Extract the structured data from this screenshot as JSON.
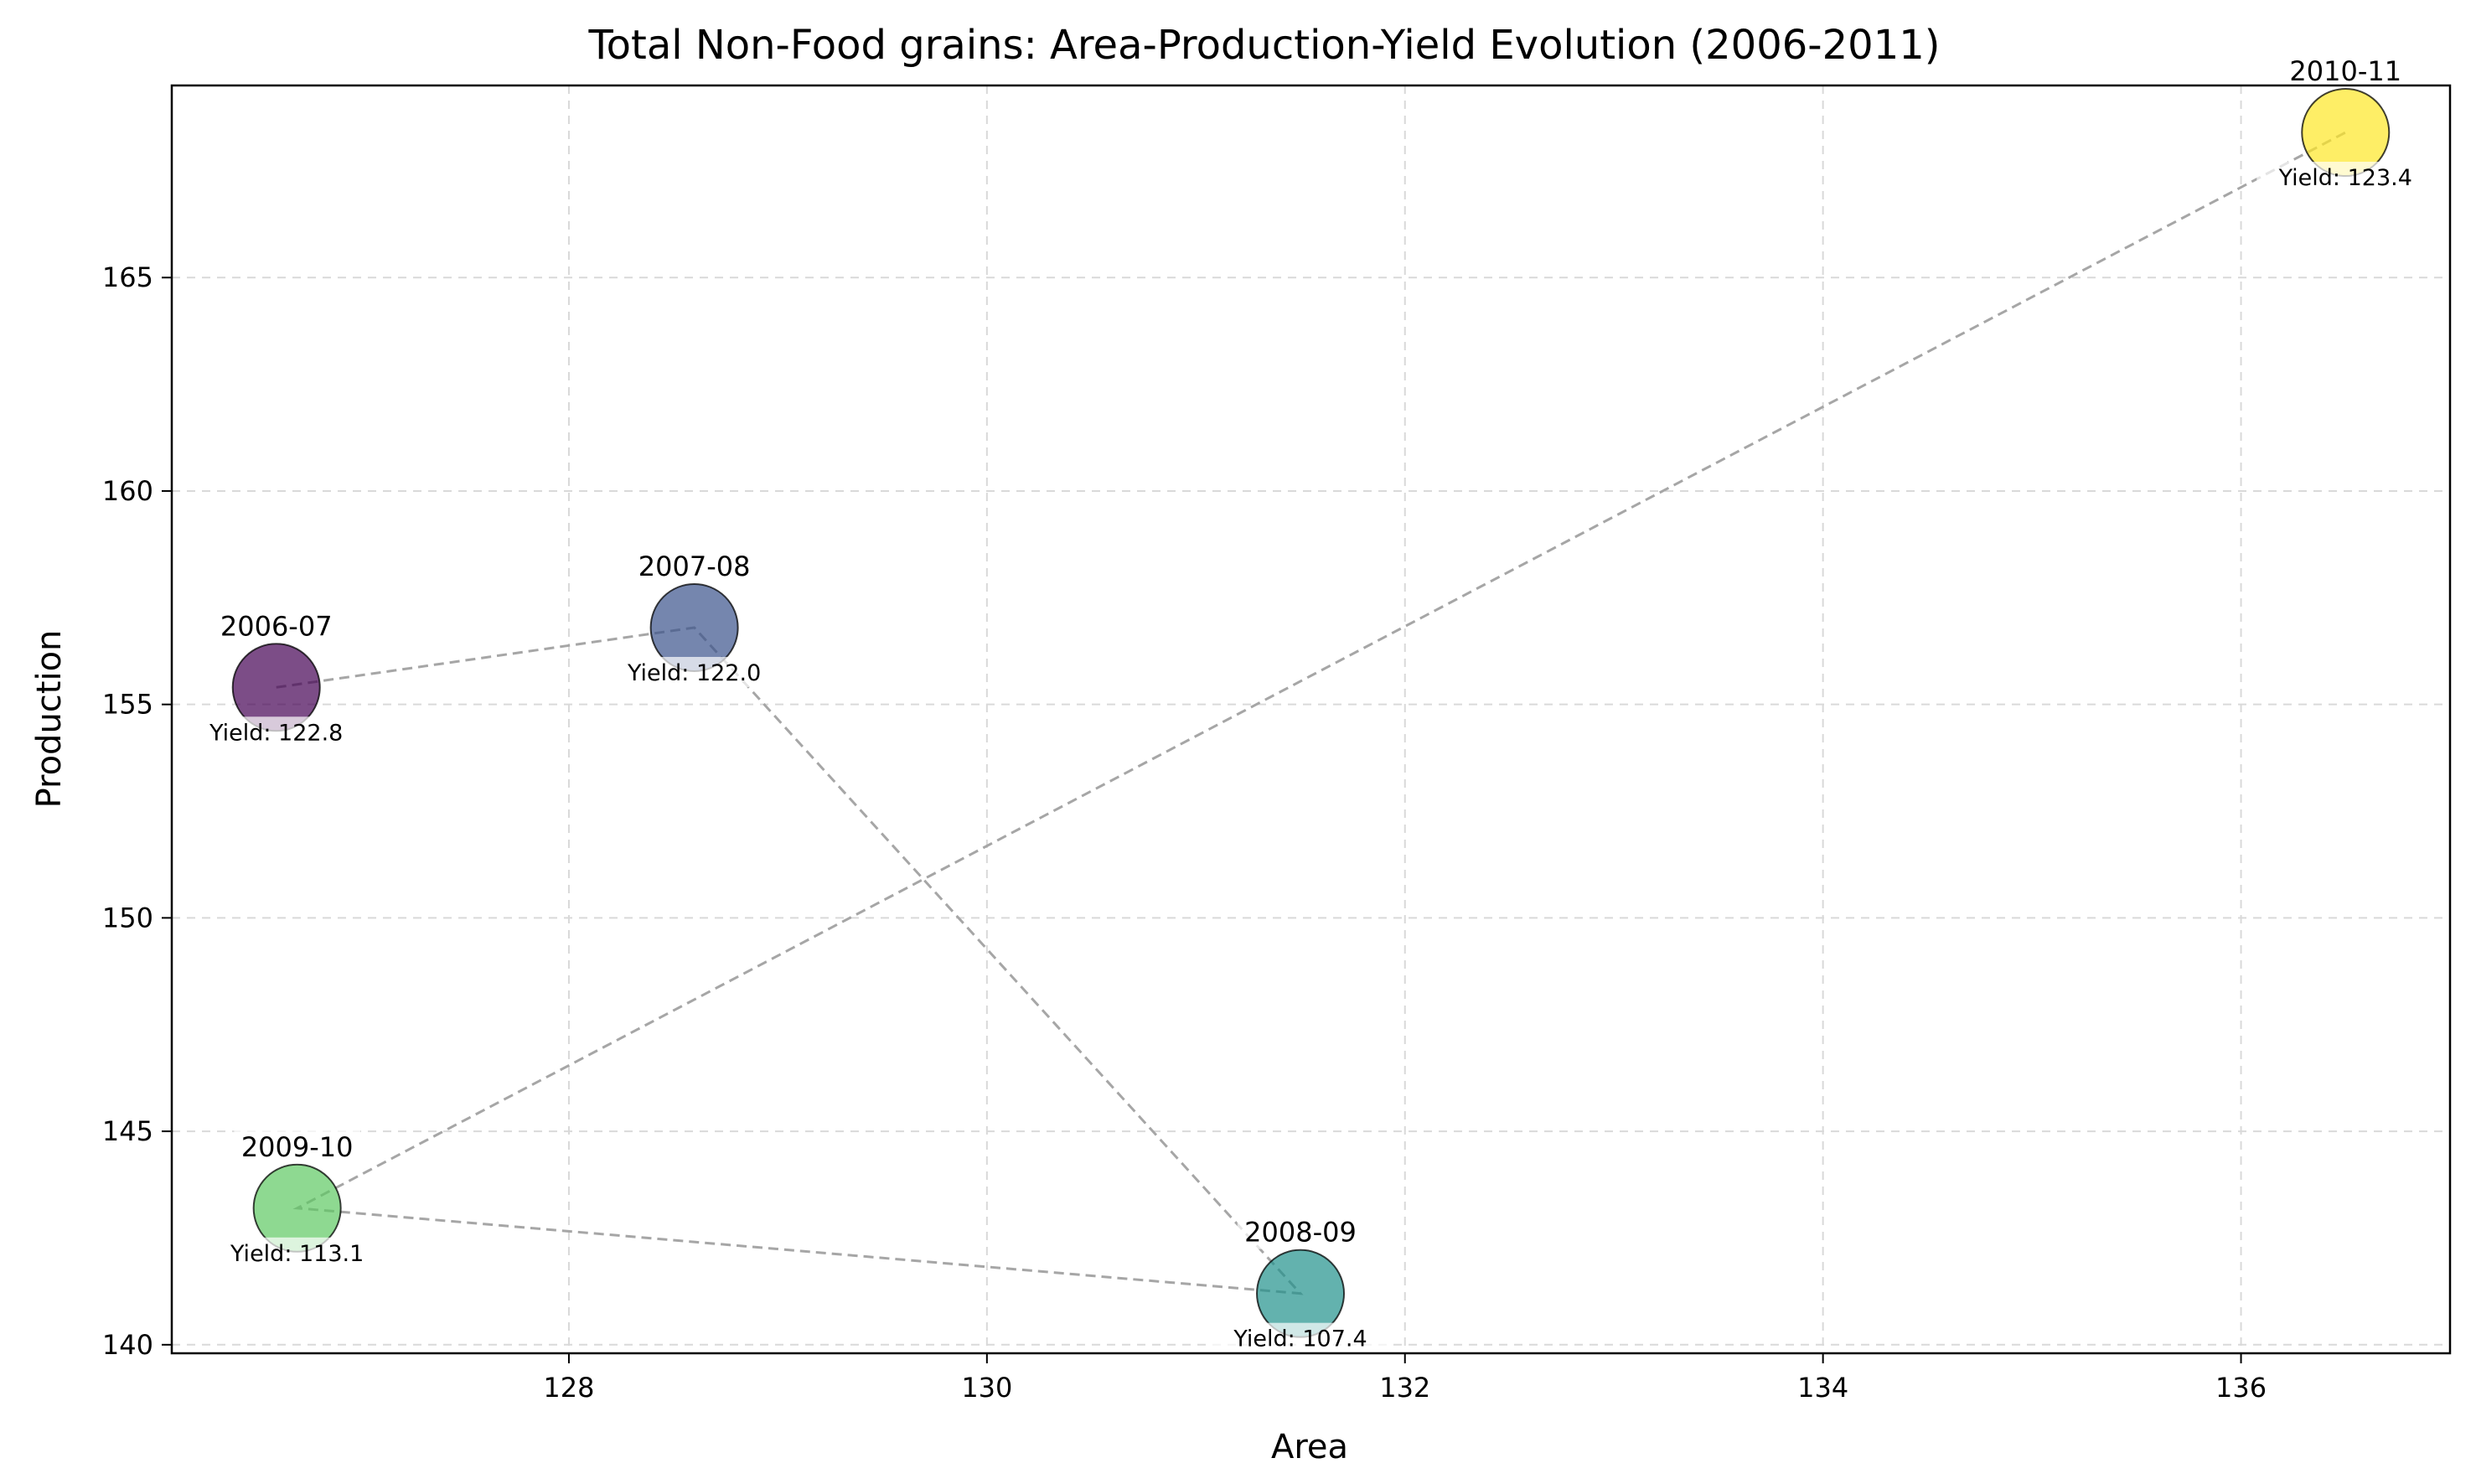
{
  "chart_data": {
    "type": "scatter",
    "title": "Total Non-Food grains: Area-Production-Yield Evolution (2006-2011)",
    "xlabel": "Area",
    "ylabel": "Production",
    "xlim": [
      126.1,
      137.0
    ],
    "ylim": [
      139.8,
      169.5
    ],
    "xticks": [
      128,
      130,
      132,
      134,
      136
    ],
    "yticks": [
      140,
      145,
      150,
      155,
      160,
      165
    ],
    "grid": true,
    "connect_points": true,
    "points": [
      {
        "label": "2006-07",
        "x": 126.6,
        "y": 155.4,
        "yield_label": "Yield: 122.8",
        "color": "#440154"
      },
      {
        "label": "2007-08",
        "x": 128.6,
        "y": 156.8,
        "yield_label": "Yield: 122.0",
        "color": "#3b528b"
      },
      {
        "label": "2008-09",
        "x": 131.5,
        "y": 141.2,
        "yield_label": "Yield: 107.4",
        "color": "#21918c"
      },
      {
        "label": "2009-10",
        "x": 126.7,
        "y": 143.2,
        "yield_label": "Yield: 113.1",
        "color": "#5ec962"
      },
      {
        "label": "2010-11",
        "x": 136.5,
        "y": 168.4,
        "yield_label": "Yield: 123.4",
        "color": "#fde725"
      }
    ]
  }
}
